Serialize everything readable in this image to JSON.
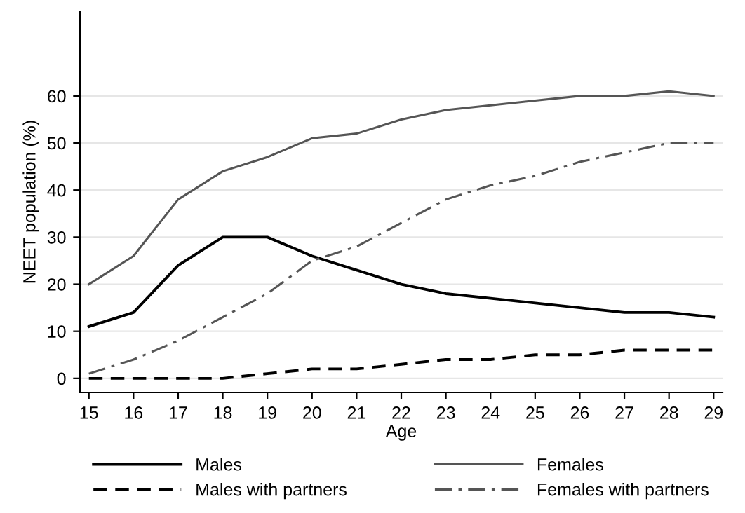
{
  "chart_data": {
    "type": "line",
    "xlabel": "Age",
    "ylabel": "NEET population (%)",
    "x": [
      15,
      16,
      17,
      18,
      19,
      20,
      21,
      22,
      23,
      24,
      25,
      26,
      27,
      28,
      29
    ],
    "series": [
      {
        "name": "Males",
        "color": "#000000",
        "line_style": "solid",
        "values": [
          11,
          14,
          24,
          30,
          30,
          26,
          23,
          20,
          18,
          17,
          16,
          15,
          14,
          14,
          13
        ]
      },
      {
        "name": "Males with partners",
        "color": "#000000",
        "line_style": "dashed",
        "values": [
          0,
          0,
          0,
          0,
          1,
          2,
          2,
          3,
          4,
          4,
          5,
          5,
          6,
          6,
          6
        ]
      },
      {
        "name": "Females",
        "color": "#555555",
        "line_style": "solid",
        "values": [
          20,
          26,
          38,
          44,
          47,
          51,
          52,
          55,
          57,
          58,
          59,
          60,
          60,
          61,
          60
        ]
      },
      {
        "name": "Females with partners",
        "color": "#555555",
        "line_style": "dashdot",
        "values": [
          1,
          4,
          8,
          13,
          18,
          25,
          28,
          33,
          38,
          41,
          43,
          46,
          48,
          50,
          50
        ]
      }
    ],
    "xlim": [
      14.8,
      29.2
    ],
    "xticks": [
      15,
      16,
      17,
      18,
      19,
      20,
      21,
      22,
      23,
      24,
      25,
      26,
      27,
      28,
      29
    ],
    "ylim": [
      -3,
      78
    ],
    "yticks": [
      0,
      10,
      20,
      30,
      40,
      50,
      60
    ],
    "grid": "y",
    "legend": "bottom",
    "marker": "none"
  }
}
